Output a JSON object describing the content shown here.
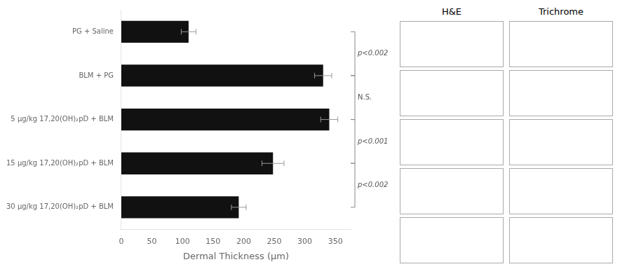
{
  "chart_data": {
    "type": "bar",
    "orientation": "horizontal",
    "categories": [
      "PG + Saline",
      "BLM + PG",
      "5 μg/kg 17,20(OH)₂pD + BLM",
      "15 μg/kg 17,20(OH)₂pD + BLM",
      "30 μg/kg 17,20(OH)₂pD + BLM"
    ],
    "values": [
      110,
      330,
      340,
      248,
      192
    ],
    "errors": [
      12,
      14,
      14,
      18,
      12
    ],
    "color": "#111111",
    "xlabel": "Dermal Thickness (μm)",
    "xlim": [
      0,
      375
    ],
    "xticks": [
      0,
      50,
      100,
      150,
      200,
      250,
      300,
      350
    ],
    "grid": false,
    "annotations": [
      {
        "text": "p<0.002",
        "from": "PG + Saline",
        "to": "BLM + PG"
      },
      {
        "text": "N.S.",
        "from": "BLM + PG",
        "to": "5 μg/kg 17,20(OH)₂pD + BLM"
      },
      {
        "text": "p<0.001",
        "from": "5 μg/kg 17,20(OH)₂pD + BLM",
        "to": "15 μg/kg 17,20(OH)₂pD + BLM"
      },
      {
        "text": "p<0.002",
        "from": "15 μg/kg 17,20(OH)₂pD + BLM",
        "to": "30 μg/kg 17,20(OH)₂pD + BLM"
      }
    ],
    "column_labels": [
      "H&E",
      "Trichrome"
    ]
  }
}
